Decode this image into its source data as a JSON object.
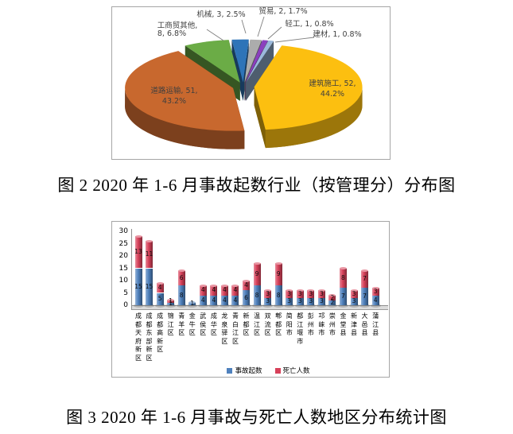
{
  "page": {
    "background": "#FFFFFF",
    "frame_border": "#A6A6A6"
  },
  "figure2": {
    "caption": "图 2  2020 年 1-6 月事故起数行业（按管理分）分布图"
  },
  "figure3": {
    "caption": "图 3  2020 年 1-6 月事故与死亡人数地区分布统计图"
  },
  "chart_data": [
    {
      "id": "fig2-industry-pie",
      "type": "pie",
      "style": "3d-exploded",
      "legend_position": "none",
      "slices": [
        {
          "label": "机械",
          "value": 3,
          "percent": 2.5,
          "color": "#2E74B8"
        },
        {
          "label": "贸易",
          "value": 2,
          "percent": 1.7,
          "color": "#ACACAC"
        },
        {
          "label": "轻工",
          "value": 1,
          "percent": 0.8,
          "color": "#8B3FBE"
        },
        {
          "label": "建材",
          "value": 1,
          "percent": 0.8,
          "color": "#9BB9DC"
        },
        {
          "label": "建筑施工",
          "value": 52,
          "percent": 44.2,
          "color": "#FCBF10"
        },
        {
          "label": "道路运输",
          "value": 51,
          "percent": 43.2,
          "color": "#C8682E"
        },
        {
          "label": "工商贸其他",
          "value": 8,
          "percent": 6.8,
          "color": "#6BAC46"
        }
      ]
    },
    {
      "id": "fig3-region-bar",
      "type": "bar",
      "stacked": true,
      "grid": false,
      "legend_position": "bottom",
      "ylim": [
        0,
        30
      ],
      "yticks": [
        0,
        5,
        10,
        15,
        20,
        25,
        30
      ],
      "categories": [
        "成都天府新区",
        "成都东部新区",
        "成都高新区",
        "锦江区",
        "青羊区",
        "金牛区",
        "武侯区",
        "成华区",
        "龙泉驿区",
        "青白江区",
        "新都区",
        "温江区",
        "双流区",
        "郫都区",
        "简阳市",
        "都江堰市",
        "彭州市",
        "邛崃市",
        "崇州市",
        "金堂县",
        "新津县",
        "大邑县",
        "蒲江县"
      ],
      "series": [
        {
          "name": "事故起数",
          "color": "#4F81BD",
          "values": [
            15,
            15,
            5,
            1,
            8,
            1,
            4,
            4,
            4,
            4,
            6,
            8,
            3,
            8,
            3,
            3,
            3,
            3,
            2,
            7,
            3,
            7,
            4
          ]
        },
        {
          "name": "死亡人数",
          "color": "#D7415A",
          "values": [
            13,
            11,
            4,
            1,
            6,
            0,
            4,
            4,
            4,
            4,
            4,
            9,
            3,
            9,
            3,
            3,
            3,
            3,
            2,
            8,
            3,
            7,
            3
          ]
        }
      ]
    }
  ]
}
